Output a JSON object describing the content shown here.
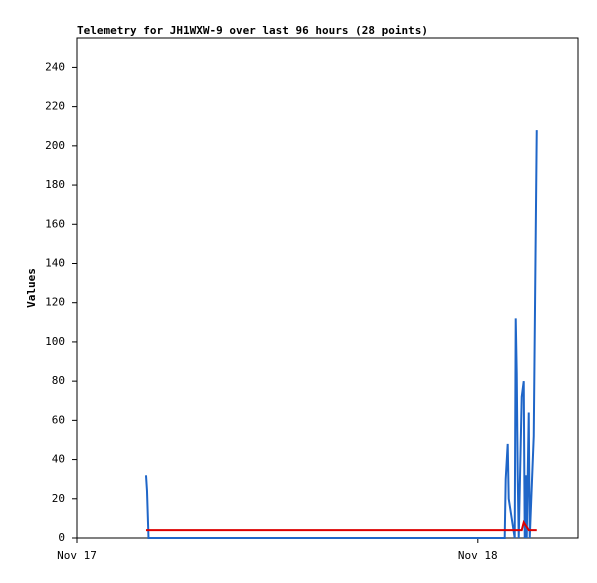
{
  "chart_data": {
    "type": "line",
    "title": "Telemetry for JH1WXW-9 over last 96 hours (28 points)",
    "y_label": "Values",
    "xlim": [
      0,
      30
    ],
    "xticks": [
      {
        "value": 0,
        "label": "Nov 17"
      },
      {
        "value": 24,
        "label": "Nov 18"
      }
    ],
    "ylim": [
      0,
      255
    ],
    "yticks": [
      0,
      20,
      40,
      60,
      80,
      100,
      120,
      140,
      160,
      180,
      200,
      220,
      240
    ],
    "series": [
      {
        "color": "#1f66c8",
        "x": [
          4.13,
          4.19,
          4.25,
          4.28,
          25.61,
          25.67,
          25.79,
          25.85,
          26.21,
          26.27,
          26.33,
          26.39,
          26.45,
          26.57,
          26.63,
          26.75,
          26.81,
          26.87,
          26.93,
          27.05,
          27.11,
          27.35,
          27.47,
          27.53
        ],
        "values": [
          32,
          24,
          8,
          0,
          0,
          30,
          48,
          20,
          0,
          112,
          84,
          32,
          0,
          48,
          72,
          80,
          0,
          32,
          0,
          64,
          0,
          52,
          156,
          208
        ]
      },
      {
        "color": "#dd0000",
        "x": [
          4.13,
          25.61,
          26.63,
          26.75,
          27.05,
          27.53
        ],
        "values": [
          4,
          4,
          4,
          8,
          4,
          4
        ]
      }
    ]
  }
}
